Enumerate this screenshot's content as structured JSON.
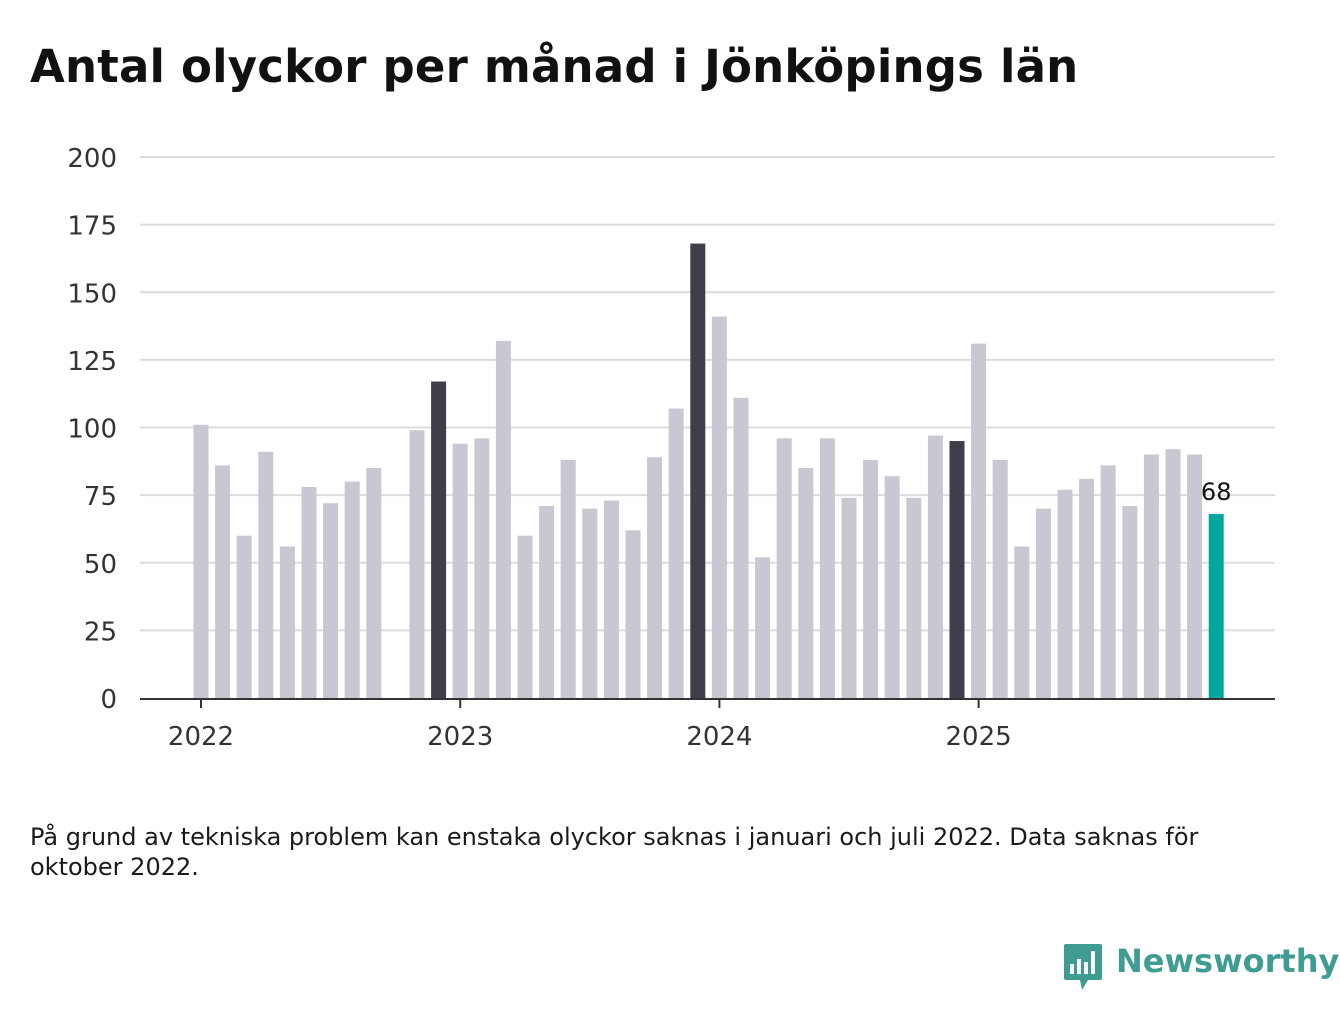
{
  "title": "Antal olyckor per månad i Jönköpings län",
  "footnote": "På grund av tekniska problem kan enstaka olyckor saknas i januari och juli 2022. Data saknas för oktober 2022.",
  "brand": {
    "name": "Newsworthy",
    "color": "#3f9c93"
  },
  "colors": {
    "bar_default": "#c8c7d2",
    "bar_december": "#3f3f4c",
    "bar_latest": "#00a79a",
    "grid": "#dcdcdc",
    "axis": "#333333",
    "tick_text": "#333333"
  },
  "chart_data": {
    "type": "bar",
    "title": "Antal olyckor per månad i Jönköpings län",
    "xlabel": "",
    "ylabel": "",
    "ylim": [
      0,
      200
    ],
    "yticks": [
      0,
      25,
      50,
      75,
      100,
      125,
      150,
      175,
      200
    ],
    "grid": true,
    "x_tick_labels": [
      "2022",
      "2023",
      "2024",
      "2025"
    ],
    "x_tick_months": [
      "2022-01",
      "2023-01",
      "2024-01",
      "2025-01"
    ],
    "latest_label": "68",
    "categories": [
      "2022-01",
      "2022-02",
      "2022-03",
      "2022-04",
      "2022-05",
      "2022-06",
      "2022-07",
      "2022-08",
      "2022-09",
      "2022-10",
      "2022-11",
      "2022-12",
      "2023-01",
      "2023-02",
      "2023-03",
      "2023-04",
      "2023-05",
      "2023-06",
      "2023-07",
      "2023-08",
      "2023-09",
      "2023-10",
      "2023-11",
      "2023-12",
      "2024-01",
      "2024-02",
      "2024-03",
      "2024-04",
      "2024-05",
      "2024-06",
      "2024-07",
      "2024-08",
      "2024-09",
      "2024-10",
      "2024-11",
      "2024-12",
      "2025-01",
      "2025-02",
      "2025-03",
      "2025-04",
      "2025-05",
      "2025-06",
      "2025-07",
      "2025-08",
      "2025-09",
      "2025-10",
      "2025-11",
      "2025-12"
    ],
    "values": [
      101,
      86,
      60,
      91,
      56,
      78,
      72,
      80,
      85,
      null,
      99,
      117,
      94,
      96,
      132,
      60,
      71,
      88,
      70,
      73,
      62,
      89,
      107,
      168,
      141,
      111,
      52,
      96,
      85,
      96,
      74,
      88,
      82,
      74,
      97,
      95,
      131,
      88,
      56,
      70,
      77,
      81,
      86,
      71,
      90,
      92,
      90,
      68
    ],
    "highlight_months": [
      "2022-12",
      "2023-12",
      "2024-12"
    ],
    "latest_month": "2025-12"
  }
}
